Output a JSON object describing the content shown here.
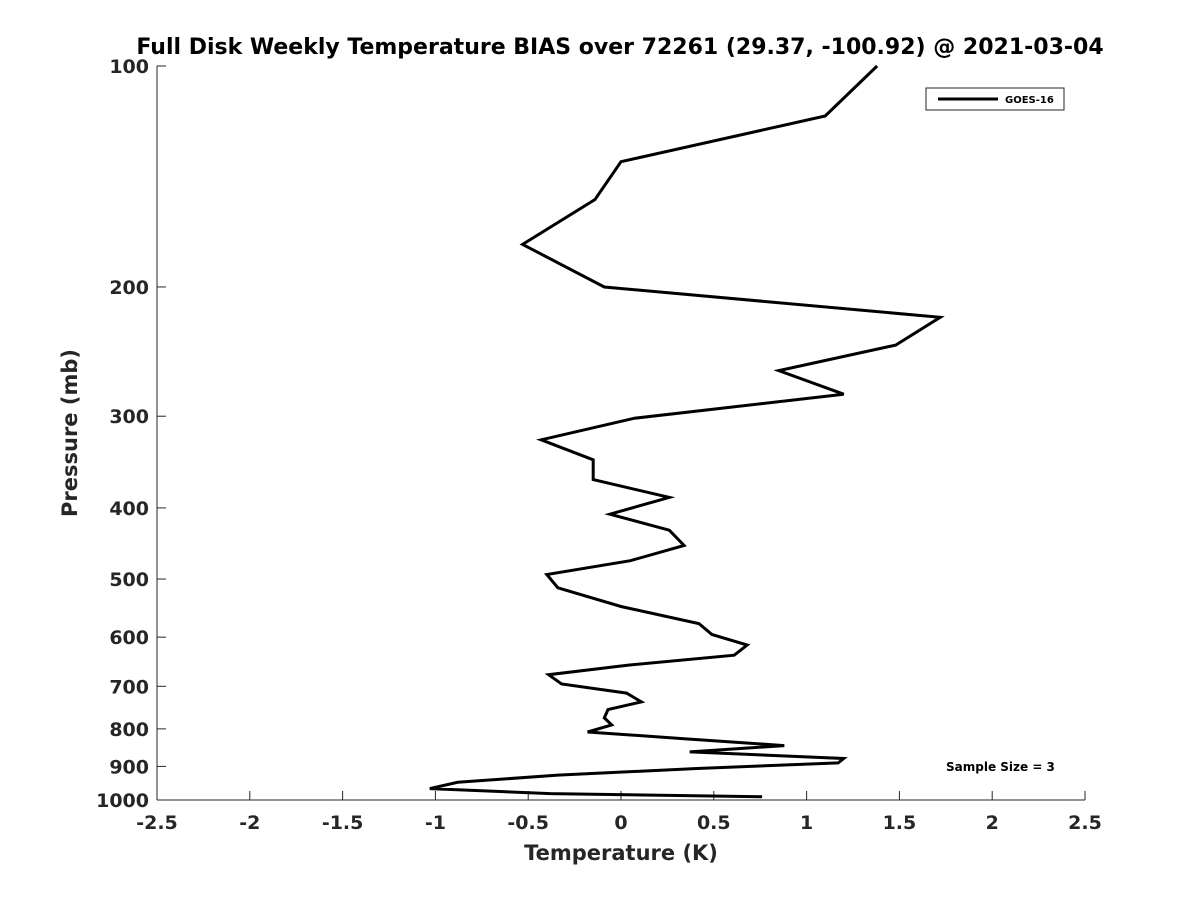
{
  "chart_data": {
    "type": "line",
    "title": "Full Disk Weekly Temperature BIAS over 72261 (29.37, -100.92) @ 2021-03-04",
    "xlabel": "Temperature (K)",
    "ylabel": "Pressure (mb)",
    "xlim": [
      -2.5,
      2.5
    ],
    "ylim": [
      100,
      1000
    ],
    "y_scale": "log",
    "y_reversed": true,
    "x_ticks": [
      "-2.5",
      "-2",
      "-1.5",
      "-1",
      "-0.5",
      "0",
      "0.5",
      "1",
      "1.5",
      "2",
      "2.5"
    ],
    "y_ticks": [
      "100",
      "200",
      "300",
      "400",
      "500",
      "600",
      "700",
      "800",
      "900",
      "1000"
    ],
    "grid": false,
    "legend_position": "top-right",
    "annotation": "Sample Size = 3",
    "series": [
      {
        "name": "GOES-16",
        "color": "#000000",
        "points": [
          {
            "x": 1.38,
            "p": 100
          },
          {
            "x": 1.1,
            "p": 117
          },
          {
            "x": 0.0,
            "p": 135
          },
          {
            "x": -0.14,
            "p": 152
          },
          {
            "x": -0.53,
            "p": 175
          },
          {
            "x": -0.09,
            "p": 200
          },
          {
            "x": 1.72,
            "p": 220
          },
          {
            "x": 1.48,
            "p": 240
          },
          {
            "x": 0.85,
            "p": 260
          },
          {
            "x": 1.2,
            "p": 280
          },
          {
            "x": 0.07,
            "p": 302
          },
          {
            "x": -0.43,
            "p": 323
          },
          {
            "x": -0.15,
            "p": 344
          },
          {
            "x": -0.15,
            "p": 366
          },
          {
            "x": 0.26,
            "p": 387
          },
          {
            "x": -0.06,
            "p": 408
          },
          {
            "x": 0.26,
            "p": 429
          },
          {
            "x": 0.34,
            "p": 450
          },
          {
            "x": 0.05,
            "p": 472
          },
          {
            "x": -0.4,
            "p": 493
          },
          {
            "x": -0.34,
            "p": 514
          },
          {
            "x": 0.0,
            "p": 545
          },
          {
            "x": 0.42,
            "p": 575
          },
          {
            "x": 0.49,
            "p": 595
          },
          {
            "x": 0.68,
            "p": 615
          },
          {
            "x": 0.61,
            "p": 635
          },
          {
            "x": 0.04,
            "p": 655
          },
          {
            "x": -0.39,
            "p": 675
          },
          {
            "x": -0.32,
            "p": 695
          },
          {
            "x": 0.03,
            "p": 715
          },
          {
            "x": 0.11,
            "p": 735
          },
          {
            "x": -0.07,
            "p": 753
          },
          {
            "x": -0.09,
            "p": 773
          },
          {
            "x": -0.05,
            "p": 790
          },
          {
            "x": -0.18,
            "p": 808
          },
          {
            "x": 0.34,
            "p": 825
          },
          {
            "x": 0.88,
            "p": 843
          },
          {
            "x": 0.37,
            "p": 860
          },
          {
            "x": 1.2,
            "p": 878
          },
          {
            "x": 1.17,
            "p": 890
          },
          {
            "x": 0.41,
            "p": 906
          },
          {
            "x": -0.34,
            "p": 925
          },
          {
            "x": -0.88,
            "p": 946
          },
          {
            "x": -1.03,
            "p": 965
          },
          {
            "x": -0.38,
            "p": 980
          },
          {
            "x": 0.76,
            "p": 990
          }
        ]
      }
    ]
  }
}
